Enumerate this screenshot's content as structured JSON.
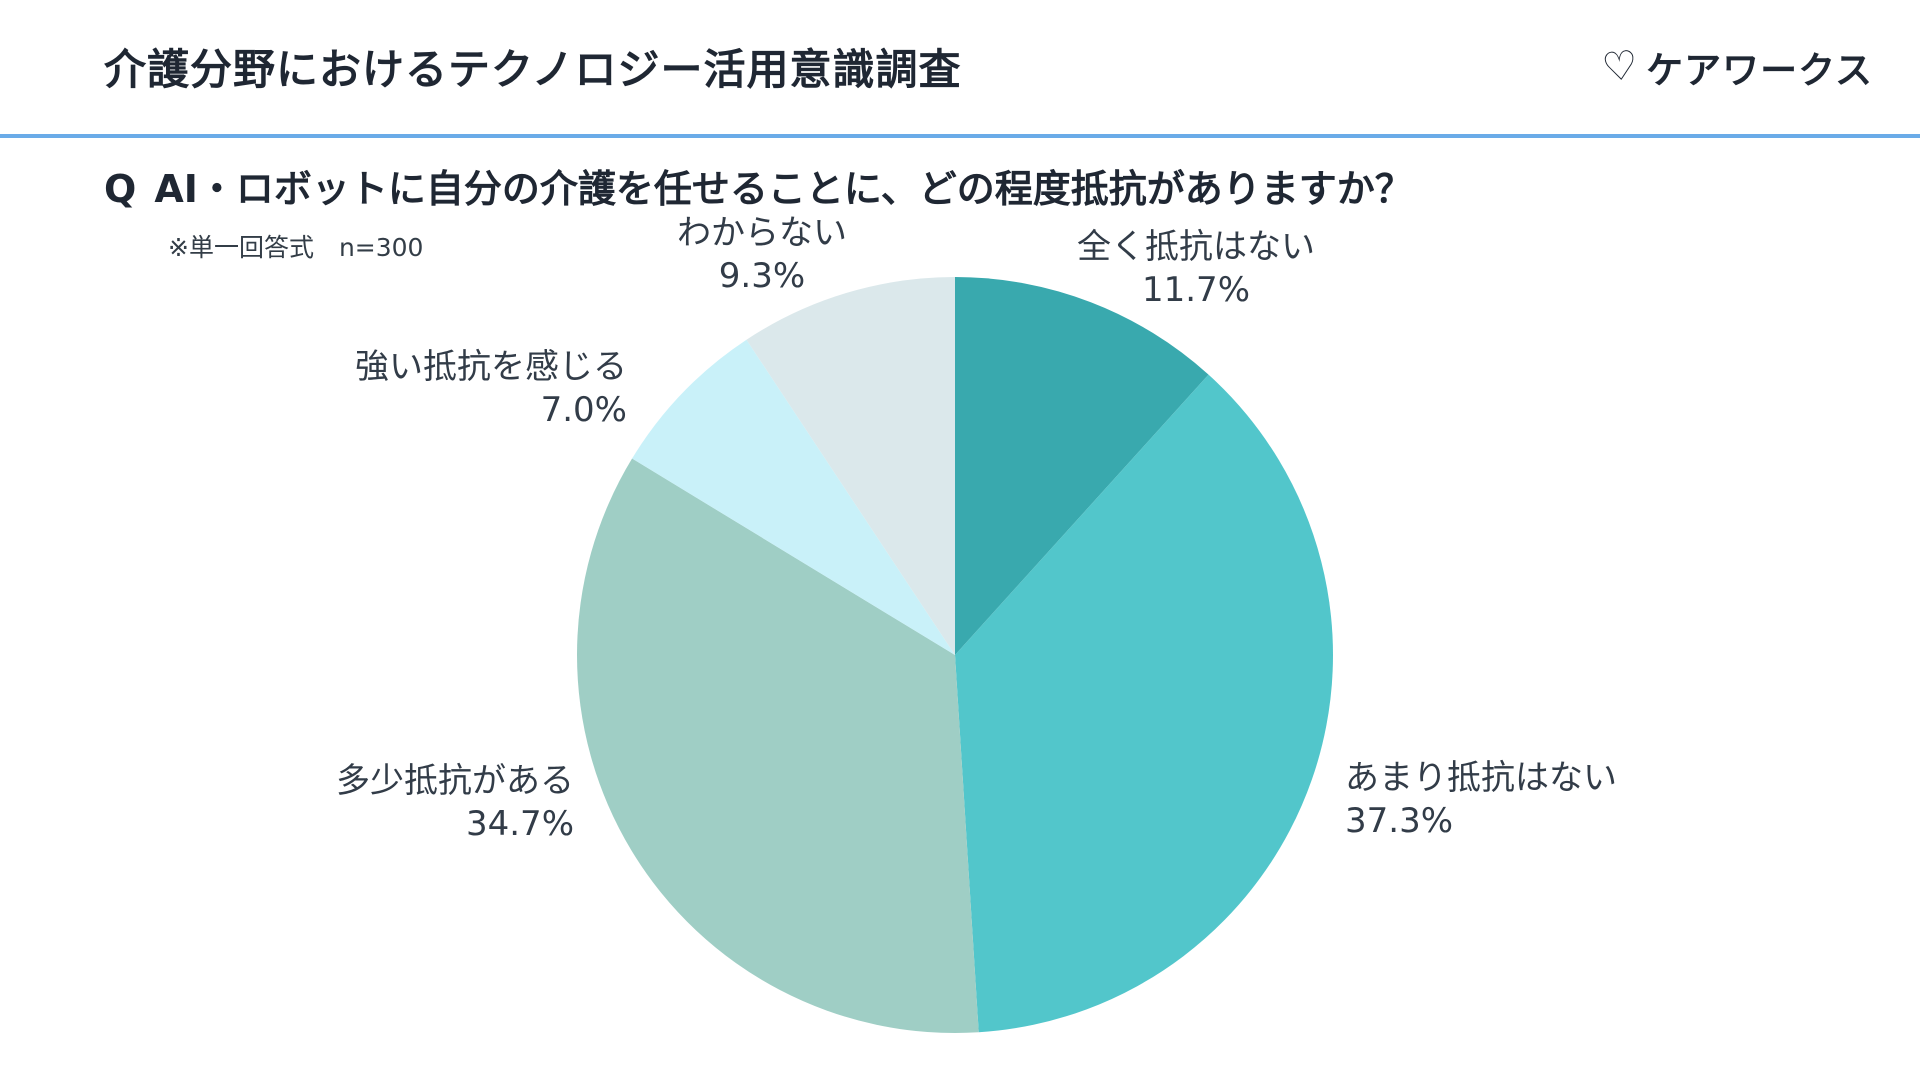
{
  "header": {
    "title": "介護分野におけるテクノロジー活用意識調査",
    "logo_icon_glyph": "♡",
    "logo_text": "ケアワークス"
  },
  "question": {
    "prefix": "Q",
    "text": "AI・ロボットに自分の介護を任せることに、どの程度抵抗がありますか？",
    "note": "※単一回答式　n=300"
  },
  "chart_data": {
    "type": "pie",
    "categories": [
      "全く抵抗はない",
      "あまり抵抗はない",
      "多少抵抗がある",
      "強い抵抗を感じる",
      "わからない"
    ],
    "values": [
      11.7,
      37.3,
      34.7,
      7.0,
      9.3
    ],
    "value_labels": [
      "11.7%",
      "37.3%",
      "34.7%",
      "7.0%",
      "9.3%"
    ],
    "unit": "%",
    "n": 300,
    "colors": [
      "#39a9ae",
      "#52c6cb",
      "#9fcec5",
      "#c9f1f9",
      "#dbe8eb"
    ],
    "start_angle_deg": 0,
    "direction": "clockwise",
    "legend": "none",
    "labels_position": "outside"
  }
}
